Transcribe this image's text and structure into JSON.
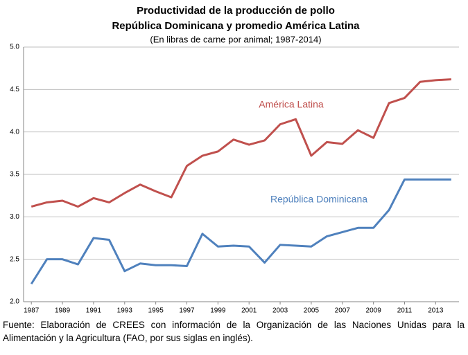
{
  "chart_data": {
    "type": "line",
    "title_lines": [
      "Productividad de la producción de pollo",
      "República Dominicana y promedio América Latina"
    ],
    "subtitle": "(En libras de carne por animal; 1987-2014)",
    "x": [
      1987,
      1988,
      1989,
      1990,
      1991,
      1992,
      1993,
      1994,
      1995,
      1996,
      1997,
      1998,
      1999,
      2000,
      2001,
      2002,
      2003,
      2004,
      2005,
      2006,
      2007,
      2008,
      2009,
      2010,
      2011,
      2012,
      2013,
      2014
    ],
    "xlim": [
      1986.5,
      2014.5
    ],
    "xticks": [
      1987,
      1989,
      1991,
      1993,
      1995,
      1997,
      1999,
      2001,
      2003,
      2005,
      2007,
      2009,
      2011,
      2013
    ],
    "ylim": [
      2,
      5
    ],
    "yticks": [
      {
        "value": 2,
        "label": "2.0"
      },
      {
        "value": 2.5,
        "label": "2.5"
      },
      {
        "value": 3,
        "label": "3.0"
      },
      {
        "value": 3.5,
        "label": "3.5"
      },
      {
        "value": 4,
        "label": "4.0"
      },
      {
        "value": 4.5,
        "label": "4.5"
      },
      {
        "value": 5,
        "label": "5.0"
      }
    ],
    "grid": true,
    "series": [
      {
        "name": "América Latina",
        "color": "#c0504d",
        "values": [
          3.12,
          3.17,
          3.19,
          3.12,
          3.22,
          3.17,
          3.28,
          3.38,
          3.3,
          3.23,
          3.6,
          3.72,
          3.77,
          3.91,
          3.85,
          3.9,
          4.09,
          4.15,
          3.72,
          3.88,
          3.86,
          4.02,
          3.93,
          4.34,
          4.4,
          4.59,
          4.61,
          4.62
        ]
      },
      {
        "name": "República Dominicana",
        "color": "#4f81bd",
        "values": [
          2.21,
          2.5,
          2.5,
          2.44,
          2.75,
          2.73,
          2.36,
          2.45,
          2.43,
          2.43,
          2.42,
          2.8,
          2.65,
          2.66,
          2.65,
          2.46,
          2.67,
          2.66,
          2.65,
          2.77,
          2.82,
          2.87,
          2.87,
          3.08,
          3.44,
          3.44,
          3.44,
          3.44
        ]
      }
    ],
    "note": "Fuente: Elaboración de CREES con información de la Organización de las Naciones Unidas para la Alimentación y la Agricultura (FAO, por sus siglas en inglés)."
  }
}
